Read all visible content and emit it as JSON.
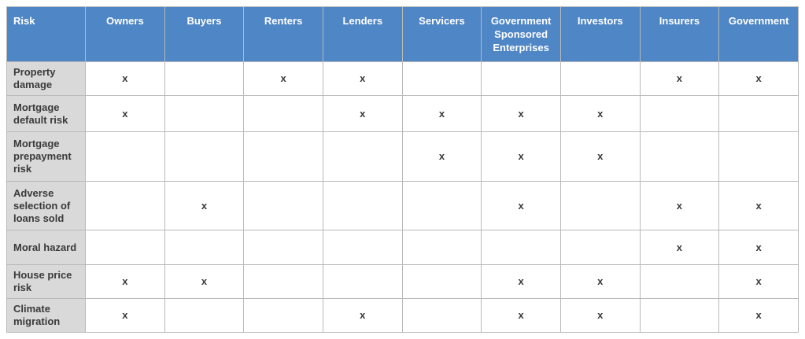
{
  "colors": {
    "header_bg": "#4f86c5",
    "header_text": "#ffffff",
    "label_bg": "#d9d9d9",
    "cell_bg": "#ffffff",
    "border": "#b9b9b9",
    "text": "#3a3a3a"
  },
  "chart_data": {
    "type": "table",
    "mark_symbol": "x",
    "columns": [
      "Risk",
      "Owners",
      "Buyers",
      "Renters",
      "Lenders",
      "Servicers",
      "Government Sponsored Enterprises",
      "Investors",
      "Insurers",
      "Government"
    ],
    "rows": [
      {
        "risk": "Property damage",
        "marks": [
          "x",
          "",
          "x",
          "x",
          "",
          "",
          "",
          "x",
          "x"
        ]
      },
      {
        "risk": "Mortgage default risk",
        "marks": [
          "x",
          "",
          "",
          "x",
          "x",
          "x",
          "x",
          "",
          ""
        ]
      },
      {
        "risk": "Mortgage prepayment risk",
        "marks": [
          "",
          "",
          "",
          "",
          "x",
          "x",
          "x",
          "",
          ""
        ]
      },
      {
        "risk": "Adverse selection of loans sold",
        "marks": [
          "",
          "x",
          "",
          "",
          "",
          "x",
          "",
          "x",
          "x"
        ]
      },
      {
        "risk": "Moral hazard",
        "marks": [
          "",
          "",
          "",
          "",
          "",
          "",
          "",
          "x",
          "x"
        ]
      },
      {
        "risk": "House price risk",
        "marks": [
          "x",
          "x",
          "",
          "",
          "",
          "x",
          "x",
          "",
          "x"
        ]
      },
      {
        "risk": "Climate migration",
        "marks": [
          "x",
          "",
          "",
          "x",
          "",
          "x",
          "x",
          "",
          "x"
        ]
      }
    ]
  }
}
